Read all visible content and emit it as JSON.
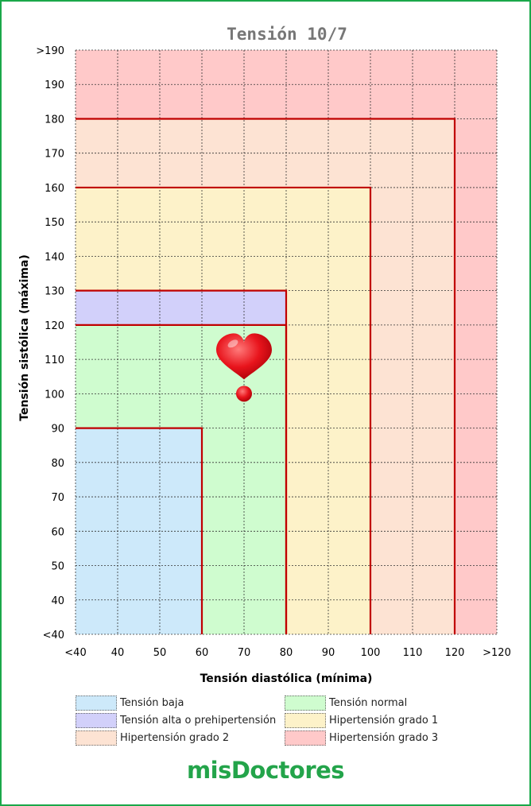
{
  "chart_data": {
    "type": "heatmap",
    "title": "Tensión 10/7",
    "xlabel": "Tensión diastólica (mínima)",
    "ylabel": "Tensión sistólica (máxima)",
    "x_ticks": [
      "<40",
      "40",
      "50",
      "60",
      "70",
      "80",
      "90",
      "100",
      "110",
      "120",
      ">120"
    ],
    "y_ticks": [
      "<40",
      "40",
      "50",
      "60",
      "70",
      "80",
      "90",
      "100",
      "110",
      "120",
      "130",
      "140",
      "150",
      "160",
      "170",
      "180",
      "190",
      ">190"
    ],
    "zones": [
      {
        "name": "Hipertensión grado 3",
        "max_diastolic": ">120",
        "max_systolic": ">190",
        "color": "#ffc9c9"
      },
      {
        "name": "Hipertensión grado 2",
        "max_diastolic": "120",
        "max_systolic": "180",
        "color": "#fde3d3"
      },
      {
        "name": "Hipertensión grado 1",
        "max_diastolic": "100",
        "max_systolic": "160",
        "color": "#fdf2c9"
      },
      {
        "name": "Tensión alta o prehipertensión",
        "max_diastolic": "80",
        "max_systolic": "130",
        "color": "#d2d0fa"
      },
      {
        "name": "Tensión normal",
        "max_diastolic": "80",
        "max_systolic": "120",
        "color": "#cffccf"
      },
      {
        "name": "Tensión baja",
        "max_diastolic": "60",
        "max_systolic": "90",
        "color": "#cde9fa"
      }
    ],
    "boundary_color": "#c00000",
    "grid": true,
    "marker": {
      "diastolic": 70,
      "systolic": 100,
      "icon": "heart-icon",
      "color": "#e8141c"
    },
    "legend": {
      "position": "bottom",
      "columns": 2,
      "items": [
        {
          "label": "Tensión baja",
          "color": "#cde9fa"
        },
        {
          "label": "Tensión normal",
          "color": "#cffccf"
        },
        {
          "label": "Tensión alta o prehipertensión",
          "color": "#d2d0fa"
        },
        {
          "label": "Hipertensión grado 1",
          "color": "#fdf2c9"
        },
        {
          "label": "Hipertensión grado 2",
          "color": "#fde3d3"
        },
        {
          "label": "Hipertensión grado 3",
          "color": "#ffc9c9"
        }
      ]
    }
  },
  "brand": {
    "text": "misDoctores",
    "color": "#23a44a"
  }
}
